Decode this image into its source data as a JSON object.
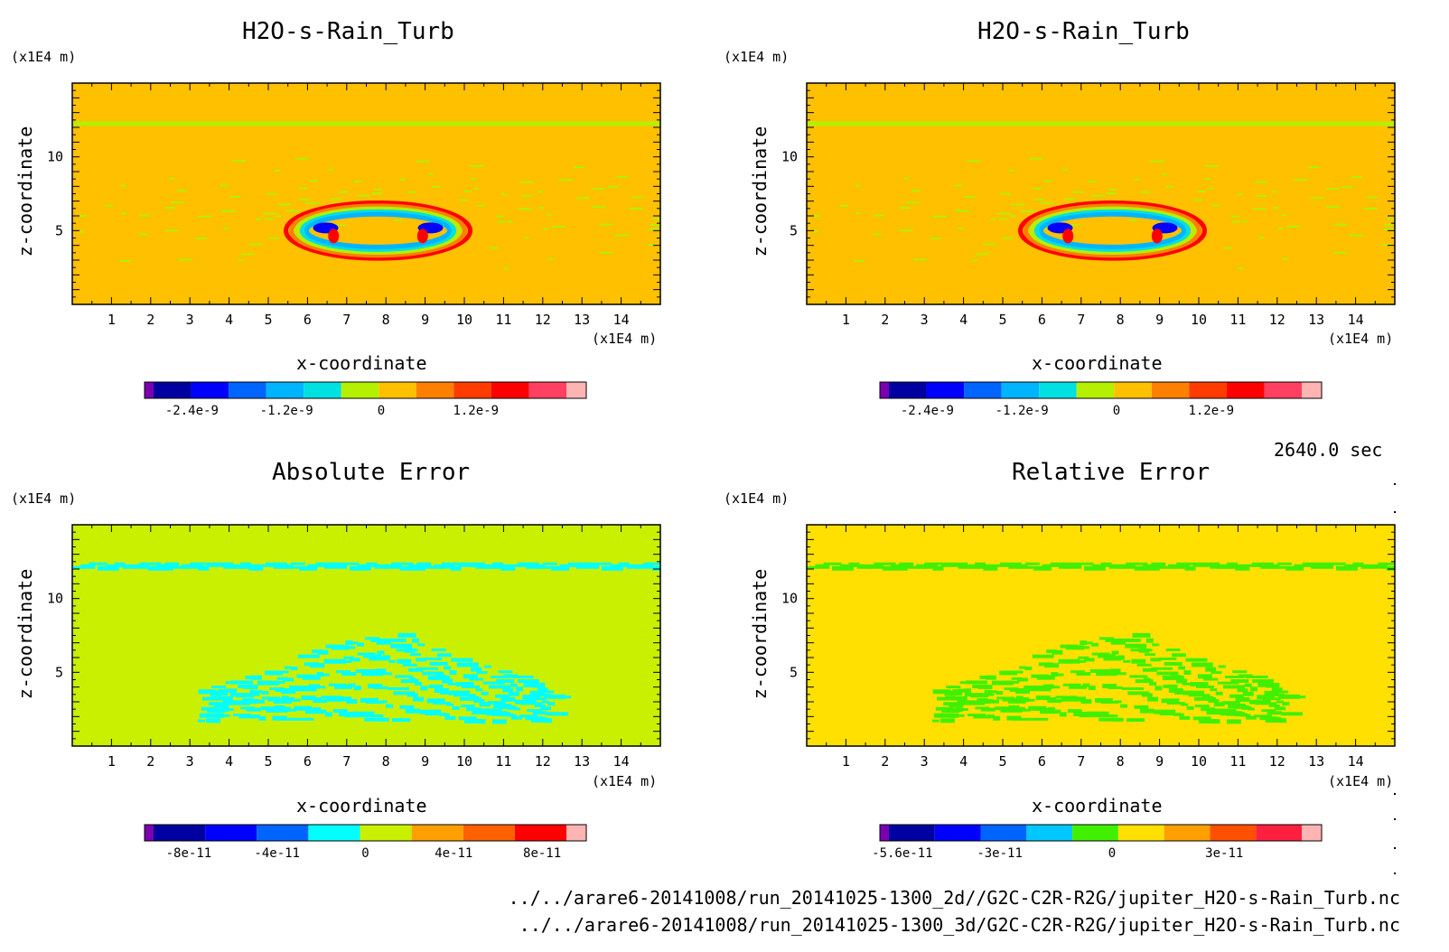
{
  "figure": {
    "time_label": "2640.0 sec",
    "files": [
      "../../arare6-20141008/run_20141025-1300_2d//G2C-C2R-R2G/jupiter_H2O-s-Rain_Turb.nc",
      "../../arare6-20141008/run_20141025-1300_3d/G2C-C2R-R2G/jupiter_H2O-s-Rain_Turb.nc"
    ]
  },
  "chart_data": [
    {
      "type": "heatmap",
      "title": "H2O-s-Rain_Turb",
      "xlabel": "x-coordinate",
      "ylabel": "z-coordinate",
      "xunit": "(x1E4 m)",
      "yunit": "(x1E4 m)",
      "xlim": [
        0,
        15
      ],
      "ylim": [
        0,
        15
      ],
      "xticks": [
        "1",
        "2",
        "3",
        "4",
        "5",
        "6",
        "7",
        "8",
        "9",
        "10",
        "11",
        "12",
        "13",
        "14"
      ],
      "yticks": [
        "5",
        "10"
      ],
      "background_color": "#ffc000",
      "colorbar": {
        "colors": [
          "#7a00b0",
          "#0000a0",
          "#0000ff",
          "#0064ff",
          "#00b4ff",
          "#00e0e0",
          "#b4f000",
          "#ffc000",
          "#ff8000",
          "#ff3c00",
          "#ff0000",
          "#ff4060",
          "#ffb4b4"
        ],
        "labels": [
          "-2.4e-9",
          "-1.2e-9",
          "0",
          "1.2e-9"
        ],
        "label_positions": [
          -2.4e-09,
          -1.2e-09,
          0,
          1.2e-09
        ],
        "range": [
          -3e-09,
          2.6e-09
        ]
      }
    },
    {
      "type": "heatmap",
      "title": "H2O-s-Rain_Turb",
      "xlabel": "x-coordinate",
      "ylabel": "z-coordinate",
      "xunit": "(x1E4 m)",
      "yunit": "(x1E4 m)",
      "xlim": [
        0,
        15
      ],
      "ylim": [
        0,
        15
      ],
      "xticks": [
        "1",
        "2",
        "3",
        "4",
        "5",
        "6",
        "7",
        "8",
        "9",
        "10",
        "11",
        "12",
        "13",
        "14"
      ],
      "yticks": [
        "5",
        "10"
      ],
      "background_color": "#ffc000",
      "colorbar": {
        "colors": [
          "#7a00b0",
          "#0000a0",
          "#0000ff",
          "#0064ff",
          "#00b4ff",
          "#00e0e0",
          "#b4f000",
          "#ffc000",
          "#ff8000",
          "#ff3c00",
          "#ff0000",
          "#ff4060",
          "#ffb4b4"
        ],
        "labels": [
          "-2.4e-9",
          "-1.2e-9",
          "0",
          "1.2e-9"
        ],
        "label_positions": [
          -2.4e-09,
          -1.2e-09,
          0,
          1.2e-09
        ],
        "range": [
          -3e-09,
          2.6e-09
        ]
      }
    },
    {
      "type": "heatmap",
      "title": "Absolute Error",
      "xlabel": "x-coordinate",
      "ylabel": "z-coordinate",
      "xunit": "(x1E4 m)",
      "yunit": "(x1E4 m)",
      "xlim": [
        0,
        15
      ],
      "ylim": [
        0,
        15
      ],
      "xticks": [
        "1",
        "2",
        "3",
        "4",
        "5",
        "6",
        "7",
        "8",
        "9",
        "10",
        "11",
        "12",
        "13",
        "14"
      ],
      "yticks": [
        "5",
        "10"
      ],
      "background_color": "#c8f000",
      "colorbar": {
        "colors": [
          "#7a00b0",
          "#0000a0",
          "#0000ff",
          "#0064ff",
          "#00ffff",
          "#c8f000",
          "#ffa000",
          "#ff6000",
          "#ff0000",
          "#ffb4b4"
        ],
        "labels": [
          "-8e-11",
          "-4e-11",
          "0",
          "4e-11",
          "8e-11"
        ],
        "label_positions": [
          -8e-11,
          -4e-11,
          0,
          4e-11,
          8e-11
        ],
        "range": [
          -1e-10,
          1e-10
        ]
      }
    },
    {
      "type": "heatmap",
      "title": "Relative Error",
      "xlabel": "x-coordinate",
      "ylabel": "z-coordinate",
      "xunit": "(x1E4 m)",
      "yunit": "(x1E4 m)",
      "xlim": [
        0,
        15
      ],
      "ylim": [
        0,
        15
      ],
      "xticks": [
        "1",
        "2",
        "3",
        "4",
        "5",
        "6",
        "7",
        "8",
        "9",
        "10",
        "11",
        "12",
        "13",
        "14"
      ],
      "yticks": [
        "5",
        "10"
      ],
      "background_color": "#ffe000",
      "colorbar": {
        "colors": [
          "#7a00b0",
          "#0000a0",
          "#0000ff",
          "#0064ff",
          "#00c8ff",
          "#40f000",
          "#ffe000",
          "#ffa000",
          "#ff5000",
          "#ff2040",
          "#ffb4b4"
        ],
        "labels": [
          "-5.6e-11",
          "-3e-11",
          "0",
          "3e-11"
        ],
        "label_positions": [
          -5.6e-11,
          -3e-11,
          0,
          3e-11
        ],
        "range": [
          -6.2e-11,
          5.6e-11
        ]
      }
    }
  ]
}
